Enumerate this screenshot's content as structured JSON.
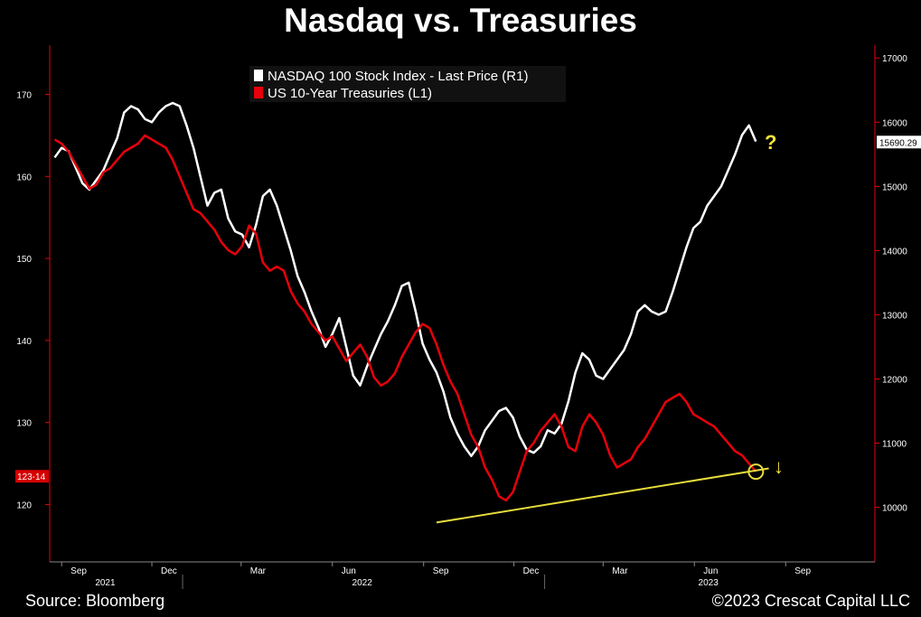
{
  "title": "Nasdaq vs. Treasuries",
  "source": "Source: Bloomberg",
  "copyright": "©2023 Crescat Capital LLC",
  "colors": {
    "background": "#000000",
    "nasdaq": "#ffffff",
    "treasuries": "#e8000b",
    "trendline": "#e6dc3c",
    "annotation": "#f2e33a",
    "price_tag_bg": "#ffffff",
    "treasury_tag_bg": "#d40000"
  },
  "chart_data": {
    "type": "line",
    "x_dates": [
      "2021-08-25",
      "2021-09-01",
      "2021-09-08",
      "2021-09-15",
      "2021-09-22",
      "2021-09-29",
      "2021-10-06",
      "2021-10-13",
      "2021-10-20",
      "2021-10-27",
      "2021-11-03",
      "2021-11-10",
      "2021-11-17",
      "2021-11-24",
      "2021-12-01",
      "2021-12-08",
      "2021-12-15",
      "2021-12-22",
      "2021-12-29",
      "2022-01-05",
      "2022-01-12",
      "2022-01-19",
      "2022-01-26",
      "2022-02-02",
      "2022-02-09",
      "2022-02-16",
      "2022-02-23",
      "2022-03-02",
      "2022-03-09",
      "2022-03-16",
      "2022-03-23",
      "2022-03-30",
      "2022-04-06",
      "2022-04-13",
      "2022-04-20",
      "2022-04-27",
      "2022-05-04",
      "2022-05-11",
      "2022-05-18",
      "2022-05-25",
      "2022-06-01",
      "2022-06-08",
      "2022-06-15",
      "2022-06-22",
      "2022-06-29",
      "2022-07-06",
      "2022-07-13",
      "2022-07-20",
      "2022-07-27",
      "2022-08-03",
      "2022-08-10",
      "2022-08-17",
      "2022-08-24",
      "2022-08-31",
      "2022-09-07",
      "2022-09-14",
      "2022-09-21",
      "2022-09-28",
      "2022-10-05",
      "2022-10-12",
      "2022-10-19",
      "2022-10-26",
      "2022-11-02",
      "2022-11-09",
      "2022-11-16",
      "2022-11-23",
      "2022-11-30",
      "2022-12-07",
      "2022-12-14",
      "2022-12-21",
      "2022-12-28",
      "2023-01-04",
      "2023-01-11",
      "2023-01-18",
      "2023-01-25",
      "2023-02-01",
      "2023-02-08",
      "2023-02-15",
      "2023-02-22",
      "2023-03-01",
      "2023-03-08",
      "2023-03-15",
      "2023-03-22",
      "2023-03-29",
      "2023-04-05",
      "2023-04-12",
      "2023-04-19",
      "2023-04-26",
      "2023-05-03",
      "2023-05-10",
      "2023-05-17",
      "2023-05-24",
      "2023-05-31",
      "2023-06-07",
      "2023-06-14",
      "2023-06-21",
      "2023-06-28",
      "2023-07-05",
      "2023-07-12",
      "2023-07-19",
      "2023-07-26",
      "2023-08-02"
    ],
    "series": [
      {
        "name": "NASDAQ 100 Stock Index - Last Price (R1)",
        "axis": "right",
        "values": [
          15450,
          15600,
          15550,
          15300,
          15050,
          14950,
          15100,
          15250,
          15500,
          15750,
          16150,
          16250,
          16200,
          16050,
          16000,
          16150,
          16250,
          16300,
          16250,
          15950,
          15600,
          15150,
          14700,
          14900,
          14950,
          14500,
          14300,
          14250,
          14050,
          14400,
          14850,
          14950,
          14700,
          14350,
          14000,
          13600,
          13350,
          13050,
          12800,
          12500,
          12700,
          12950,
          12500,
          12050,
          11900,
          12200,
          12450,
          12700,
          12900,
          13150,
          13450,
          13500,
          13050,
          12550,
          12300,
          12100,
          11800,
          11400,
          11150,
          10950,
          10800,
          10950,
          11200,
          11350,
          11500,
          11550,
          11400,
          11100,
          10900,
          10850,
          10950,
          11200,
          11150,
          11300,
          11650,
          12100,
          12400,
          12300,
          12050,
          12000,
          12150,
          12300,
          12450,
          12700,
          13050,
          13150,
          13050,
          13000,
          13050,
          13350,
          13700,
          14050,
          14350,
          14450,
          14700,
          14850,
          15000,
          15250,
          15500,
          15800,
          15950,
          15700
        ]
      },
      {
        "name": "US 10-Year Treasuries (L1)",
        "axis": "left",
        "values": [
          164.5,
          164.0,
          163.0,
          161.5,
          160.0,
          158.5,
          159.0,
          160.5,
          161.0,
          162.0,
          163.0,
          163.5,
          164.0,
          165.0,
          164.5,
          164.0,
          163.5,
          162.0,
          160.0,
          158.0,
          156.0,
          155.5,
          154.5,
          153.5,
          152.0,
          151.0,
          150.5,
          151.5,
          154.0,
          153.0,
          149.5,
          148.5,
          149.0,
          148.5,
          146.0,
          144.5,
          143.5,
          142.0,
          141.0,
          140.0,
          140.5,
          139.0,
          137.5,
          138.5,
          139.5,
          138.0,
          135.5,
          134.5,
          135.0,
          136.0,
          138.0,
          139.5,
          141.0,
          142.0,
          141.5,
          139.5,
          137.0,
          135.0,
          133.5,
          131.0,
          128.5,
          127.0,
          124.5,
          123.0,
          121.0,
          120.5,
          121.5,
          124.0,
          126.5,
          127.5,
          129.0,
          130.0,
          131.0,
          129.5,
          127.0,
          126.5,
          129.5,
          131.0,
          130.0,
          128.5,
          126.0,
          124.5,
          125.0,
          125.5,
          127.0,
          128.0,
          129.5,
          131.0,
          132.5,
          133.0,
          133.5,
          132.5,
          131.0,
          130.5,
          130.0,
          129.5,
          128.5,
          127.5,
          126.5,
          126.0,
          125.0,
          124.0
        ]
      }
    ],
    "y_left_ticks": [
      120,
      130,
      140,
      150,
      160,
      170
    ],
    "y_left_range": [
      113,
      176
    ],
    "y_right_ticks": [
      10000,
      11000,
      12000,
      13000,
      14000,
      15000,
      16000,
      17000
    ],
    "y_right_range": [
      9150,
      17200
    ],
    "x_month_ticks": [
      {
        "label": "Sep",
        "date": "2021-09-01"
      },
      {
        "label": "Dec",
        "date": "2021-12-01"
      },
      {
        "label": "Mar",
        "date": "2022-03-01"
      },
      {
        "label": "Jun",
        "date": "2022-06-01"
      },
      {
        "label": "Sep",
        "date": "2022-09-01"
      },
      {
        "label": "Dec",
        "date": "2022-12-01"
      },
      {
        "label": "Mar",
        "date": "2023-03-01"
      },
      {
        "label": "Jun",
        "date": "2023-06-01"
      },
      {
        "label": "Sep",
        "date": "2023-09-01"
      }
    ],
    "x_year_labels": [
      {
        "label": "2021",
        "date": "2021-10-15"
      },
      {
        "label": "2022",
        "date": "2022-07-01"
      },
      {
        "label": "2023",
        "date": "2023-06-15"
      }
    ],
    "x_range": [
      "2021-08-20",
      "2023-11-30"
    ],
    "last_price_right": "15690.29",
    "last_price_left": "123-14",
    "trendline": {
      "start": {
        "date": "2022-09-14",
        "value": 117.8
      },
      "end": {
        "date": "2023-08-15",
        "value": 124.4
      }
    },
    "annotations": {
      "question_mark": "?",
      "down_arrow": "↓"
    },
    "grid": false,
    "legend_position": "top-left"
  }
}
